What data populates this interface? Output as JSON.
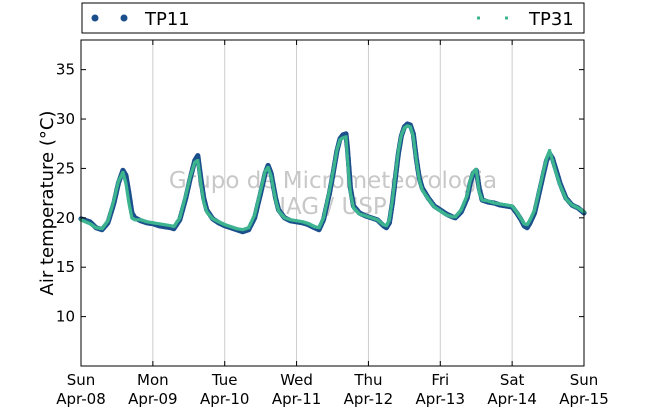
{
  "chart_data": {
    "type": "scatter",
    "ylabel": "Air temperature (°C)",
    "xlabel": "",
    "ylim": [
      5,
      38
    ],
    "yticks": [
      10,
      15,
      20,
      25,
      30,
      35
    ],
    "xlim": [
      "2012-04-08 00:00",
      "2012-04-15 00:00"
    ],
    "xticks": [
      {
        "day": "Sun",
        "date": "Apr-08"
      },
      {
        "day": "Mon",
        "date": "Apr-09"
      },
      {
        "day": "Tue",
        "date": "Apr-10"
      },
      {
        "day": "Wed",
        "date": "Apr-11"
      },
      {
        "day": "Thu",
        "date": "Apr-12"
      },
      {
        "day": "Fri",
        "date": "Apr-13"
      },
      {
        "day": "Sat",
        "date": "Apr-14"
      },
      {
        "day": "Sun",
        "date": "Apr-15"
      }
    ],
    "grid": "vertical",
    "legend_position": "top",
    "watermark": [
      "Grupo de Micrometeorologia",
      "IAG / USP"
    ],
    "series": [
      {
        "name": "TP11",
        "color": "#1b4f8c",
        "marker": "circle",
        "points": [
          [
            "2012-04-08 00:00",
            19.9
          ],
          [
            "2012-04-08 03:00",
            19.6
          ],
          [
            "2012-04-08 05:00",
            19.0
          ],
          [
            "2012-04-08 07:00",
            18.8
          ],
          [
            "2012-04-08 09:00",
            19.5
          ],
          [
            "2012-04-08 11:00",
            21.5
          ],
          [
            "2012-04-08 12:30",
            23.5
          ],
          [
            "2012-04-08 14:00",
            24.8
          ],
          [
            "2012-04-08 15:00",
            24.3
          ],
          [
            "2012-04-08 16:00",
            22.5
          ],
          [
            "2012-04-08 17:00",
            20.5
          ],
          [
            "2012-04-08 18:00",
            20.0
          ],
          [
            "2012-04-08 20:00",
            19.7
          ],
          [
            "2012-04-08 22:00",
            19.5
          ],
          [
            "2012-04-09 00:00",
            19.4
          ],
          [
            "2012-04-09 02:00",
            19.2
          ],
          [
            "2012-04-09 04:00",
            19.1
          ],
          [
            "2012-04-09 06:00",
            19.0
          ],
          [
            "2012-04-09 07:00",
            18.9
          ],
          [
            "2012-04-09 09:00",
            19.8
          ],
          [
            "2012-04-09 11:00",
            22.0
          ],
          [
            "2012-04-09 12:30",
            24.0
          ],
          [
            "2012-04-09 14:00",
            25.8
          ],
          [
            "2012-04-09 15:00",
            26.3
          ],
          [
            "2012-04-09 16:00",
            24.0
          ],
          [
            "2012-04-09 17:00",
            22.0
          ],
          [
            "2012-04-09 18:00",
            20.8
          ],
          [
            "2012-04-09 20:00",
            19.9
          ],
          [
            "2012-04-09 22:00",
            19.5
          ],
          [
            "2012-04-10 00:00",
            19.2
          ],
          [
            "2012-04-10 02:00",
            19.0
          ],
          [
            "2012-04-10 04:00",
            18.8
          ],
          [
            "2012-04-10 06:00",
            18.6
          ],
          [
            "2012-04-10 08:00",
            18.8
          ],
          [
            "2012-04-10 10:00",
            20.0
          ],
          [
            "2012-04-10 12:00",
            22.5
          ],
          [
            "2012-04-10 13:30",
            24.5
          ],
          [
            "2012-04-10 14:30",
            25.3
          ],
          [
            "2012-04-10 15:30",
            24.5
          ],
          [
            "2012-04-10 17:00",
            22.0
          ],
          [
            "2012-04-10 18:00",
            20.8
          ],
          [
            "2012-04-10 20:00",
            20.0
          ],
          [
            "2012-04-10 22:00",
            19.7
          ],
          [
            "2012-04-11 00:00",
            19.6
          ],
          [
            "2012-04-11 02:00",
            19.5
          ],
          [
            "2012-04-11 04:00",
            19.3
          ],
          [
            "2012-04-11 06:00",
            19.0
          ],
          [
            "2012-04-11 07:30",
            18.8
          ],
          [
            "2012-04-11 09:00",
            19.8
          ],
          [
            "2012-04-11 11:00",
            22.5
          ],
          [
            "2012-04-11 12:30",
            25.0
          ],
          [
            "2012-04-11 13:30",
            26.8
          ],
          [
            "2012-04-11 14:30",
            28.0
          ],
          [
            "2012-04-11 15:30",
            28.4
          ],
          [
            "2012-04-11 16:30",
            28.5
          ],
          [
            "2012-04-11 17:00",
            27.0
          ],
          [
            "2012-04-11 17:30",
            25.0
          ],
          [
            "2012-04-11 18:00",
            23.0
          ],
          [
            "2012-04-11 19:00",
            21.2
          ],
          [
            "2012-04-11 21:00",
            20.5
          ],
          [
            "2012-04-11 23:00",
            20.2
          ],
          [
            "2012-04-12 01:00",
            20.0
          ],
          [
            "2012-04-12 03:00",
            19.8
          ],
          [
            "2012-04-12 05:00",
            19.2
          ],
          [
            "2012-04-12 06:00",
            19.0
          ],
          [
            "2012-04-12 07:00",
            19.5
          ],
          [
            "2012-04-12 08:00",
            21.5
          ],
          [
            "2012-04-12 09:00",
            24.0
          ],
          [
            "2012-04-12 10:00",
            26.5
          ],
          [
            "2012-04-12 11:00",
            28.3
          ],
          [
            "2012-04-12 12:00",
            29.2
          ],
          [
            "2012-04-12 13:00",
            29.5
          ],
          [
            "2012-04-12 14:00",
            29.4
          ],
          [
            "2012-04-12 15:00",
            28.5
          ],
          [
            "2012-04-12 16:00",
            26.0
          ],
          [
            "2012-04-12 17:00",
            24.0
          ],
          [
            "2012-04-12 18:00",
            23.0
          ],
          [
            "2012-04-12 20:00",
            22.0
          ],
          [
            "2012-04-12 22:00",
            21.2
          ],
          [
            "2012-04-13 00:00",
            20.8
          ],
          [
            "2012-04-13 02:00",
            20.4
          ],
          [
            "2012-04-13 04:00",
            20.1
          ],
          [
            "2012-04-13 05:00",
            20.0
          ],
          [
            "2012-04-13 07:00",
            20.6
          ],
          [
            "2012-04-13 09:00",
            22.0
          ],
          [
            "2012-04-13 10:00",
            23.5
          ],
          [
            "2012-04-13 11:00",
            24.5
          ],
          [
            "2012-04-13 12:00",
            24.8
          ],
          [
            "2012-04-13 13:00",
            23.0
          ],
          [
            "2012-04-13 14:00",
            21.8
          ],
          [
            "2012-04-13 16:00",
            21.6
          ],
          [
            "2012-04-13 18:00",
            21.5
          ],
          [
            "2012-04-13 20:00",
            21.3
          ],
          [
            "2012-04-13 22:00",
            21.2
          ],
          [
            "2012-04-14 00:00",
            21.1
          ],
          [
            "2012-04-14 01:30",
            20.5
          ],
          [
            "2012-04-14 03:00",
            19.8
          ],
          [
            "2012-04-14 04:00",
            19.2
          ],
          [
            "2012-04-14 05:00",
            19.0
          ],
          [
            "2012-04-14 06:00",
            19.5
          ],
          [
            "2012-04-14 07:30",
            20.5
          ],
          [
            "2012-04-14 09:00",
            22.5
          ],
          [
            "2012-04-14 10:30",
            24.5
          ],
          [
            "2012-04-14 11:30",
            25.8
          ],
          [
            "2012-04-14 12:30",
            26.5
          ],
          [
            "2012-04-14 13:30",
            26.0
          ],
          [
            "2012-04-14 14:30",
            25.0
          ],
          [
            "2012-04-14 16:00",
            23.5
          ],
          [
            "2012-04-14 18:00",
            22.0
          ],
          [
            "2012-04-14 20:00",
            21.3
          ],
          [
            "2012-04-14 22:00",
            21.0
          ],
          [
            "2012-04-15 00:00",
            20.5
          ]
        ]
      },
      {
        "name": "TP31",
        "color": "#3cb58f",
        "marker": "square",
        "points": [
          [
            "2012-04-08 00:00",
            19.8
          ],
          [
            "2012-04-08 03:00",
            19.4
          ],
          [
            "2012-04-08 05:00",
            19.0
          ],
          [
            "2012-04-08 07:00",
            18.9
          ],
          [
            "2012-04-08 09:00",
            19.7
          ],
          [
            "2012-04-08 11:00",
            21.8
          ],
          [
            "2012-04-08 12:30",
            23.7
          ],
          [
            "2012-04-08 14:00",
            24.6
          ],
          [
            "2012-04-08 15:00",
            23.5
          ],
          [
            "2012-04-08 16:00",
            21.5
          ],
          [
            "2012-04-08 17:00",
            20.0
          ],
          [
            "2012-04-08 18:00",
            19.8
          ],
          [
            "2012-04-08 20:00",
            19.8
          ],
          [
            "2012-04-08 22:00",
            19.6
          ],
          [
            "2012-04-09 00:00",
            19.5
          ],
          [
            "2012-04-09 02:00",
            19.4
          ],
          [
            "2012-04-09 04:00",
            19.3
          ],
          [
            "2012-04-09 06:00",
            19.2
          ],
          [
            "2012-04-09 07:00",
            19.1
          ],
          [
            "2012-04-09 09:00",
            20.0
          ],
          [
            "2012-04-09 11:00",
            22.3
          ],
          [
            "2012-04-09 12:30",
            24.2
          ],
          [
            "2012-04-09 14:00",
            25.6
          ],
          [
            "2012-04-09 15:00",
            25.8
          ],
          [
            "2012-04-09 16:00",
            23.5
          ],
          [
            "2012-04-09 17:00",
            21.6
          ],
          [
            "2012-04-09 18:00",
            20.6
          ],
          [
            "2012-04-09 20:00",
            19.9
          ],
          [
            "2012-04-09 22:00",
            19.6
          ],
          [
            "2012-04-10 00:00",
            19.3
          ],
          [
            "2012-04-10 02:00",
            19.1
          ],
          [
            "2012-04-10 04:00",
            18.9
          ],
          [
            "2012-04-10 06:00",
            18.8
          ],
          [
            "2012-04-10 08:00",
            19.0
          ],
          [
            "2012-04-10 10:00",
            20.3
          ],
          [
            "2012-04-10 12:00",
            22.8
          ],
          [
            "2012-04-10 13:30",
            24.7
          ],
          [
            "2012-04-10 14:30",
            25.1
          ],
          [
            "2012-04-10 15:30",
            24.2
          ],
          [
            "2012-04-10 17:00",
            21.8
          ],
          [
            "2012-04-10 18:00",
            20.7
          ],
          [
            "2012-04-10 20:00",
            20.0
          ],
          [
            "2012-04-10 22:00",
            19.8
          ],
          [
            "2012-04-11 00:00",
            19.7
          ],
          [
            "2012-04-11 02:00",
            19.6
          ],
          [
            "2012-04-11 04:00",
            19.4
          ],
          [
            "2012-04-11 06:00",
            19.1
          ],
          [
            "2012-04-11 07:30",
            19.0
          ],
          [
            "2012-04-11 09:00",
            20.0
          ],
          [
            "2012-04-11 11:00",
            22.8
          ],
          [
            "2012-04-11 12:30",
            25.2
          ],
          [
            "2012-04-11 13:30",
            26.9
          ],
          [
            "2012-04-11 14:30",
            27.9
          ],
          [
            "2012-04-11 15:30",
            28.1
          ],
          [
            "2012-04-11 16:30",
            28.2
          ],
          [
            "2012-04-11 17:00",
            26.0
          ],
          [
            "2012-04-11 17:30",
            24.0
          ],
          [
            "2012-04-11 18:00",
            22.5
          ],
          [
            "2012-04-11 19:00",
            21.0
          ],
          [
            "2012-04-11 21:00",
            20.4
          ],
          [
            "2012-04-11 23:00",
            20.2
          ],
          [
            "2012-04-12 01:00",
            20.0
          ],
          [
            "2012-04-12 03:00",
            19.8
          ],
          [
            "2012-04-12 05:00",
            19.3
          ],
          [
            "2012-04-12 06:00",
            19.2
          ],
          [
            "2012-04-12 07:00",
            19.8
          ],
          [
            "2012-04-12 08:00",
            21.8
          ],
          [
            "2012-04-12 09:00",
            24.3
          ],
          [
            "2012-04-12 10:00",
            26.8
          ],
          [
            "2012-04-12 11:00",
            28.4
          ],
          [
            "2012-04-12 12:00",
            29.1
          ],
          [
            "2012-04-12 13:00",
            29.3
          ],
          [
            "2012-04-12 14:00",
            29.2
          ],
          [
            "2012-04-12 15:00",
            28.2
          ],
          [
            "2012-04-12 16:00",
            25.8
          ],
          [
            "2012-04-12 17:00",
            23.8
          ],
          [
            "2012-04-12 18:00",
            22.8
          ],
          [
            "2012-04-12 20:00",
            21.9
          ],
          [
            "2012-04-12 22:00",
            21.1
          ],
          [
            "2012-04-13 00:00",
            20.7
          ],
          [
            "2012-04-13 02:00",
            20.3
          ],
          [
            "2012-04-13 04:00",
            20.1
          ],
          [
            "2012-04-13 05:00",
            20.1
          ],
          [
            "2012-04-13 07:00",
            20.8
          ],
          [
            "2012-04-13 09:00",
            22.3
          ],
          [
            "2012-04-13 10:00",
            23.8
          ],
          [
            "2012-04-13 11:00",
            24.6
          ],
          [
            "2012-04-13 12:00",
            24.9
          ],
          [
            "2012-04-13 13:00",
            22.6
          ],
          [
            "2012-04-13 14:00",
            21.8
          ],
          [
            "2012-04-13 16:00",
            21.7
          ],
          [
            "2012-04-13 18:00",
            21.5
          ],
          [
            "2012-04-13 20:00",
            21.4
          ],
          [
            "2012-04-13 22:00",
            21.3
          ],
          [
            "2012-04-14 00:00",
            21.2
          ],
          [
            "2012-04-14 01:30",
            20.6
          ],
          [
            "2012-04-14 03:00",
            19.9
          ],
          [
            "2012-04-14 04:00",
            19.4
          ],
          [
            "2012-04-14 05:00",
            19.3
          ],
          [
            "2012-04-14 06:00",
            19.8
          ],
          [
            "2012-04-14 07:30",
            20.8
          ],
          [
            "2012-04-14 09:00",
            22.8
          ],
          [
            "2012-04-14 10:30",
            24.8
          ],
          [
            "2012-04-14 11:30",
            26.0
          ],
          [
            "2012-04-14 12:30",
            26.8
          ],
          [
            "2012-04-14 13:30",
            25.8
          ],
          [
            "2012-04-14 14:30",
            24.7
          ],
          [
            "2012-04-14 16:00",
            23.3
          ],
          [
            "2012-04-14 18:00",
            21.9
          ],
          [
            "2012-04-14 20:00",
            21.3
          ],
          [
            "2012-04-14 22:00",
            21.0
          ],
          [
            "2012-04-15 00:00",
            20.6
          ]
        ]
      }
    ]
  }
}
